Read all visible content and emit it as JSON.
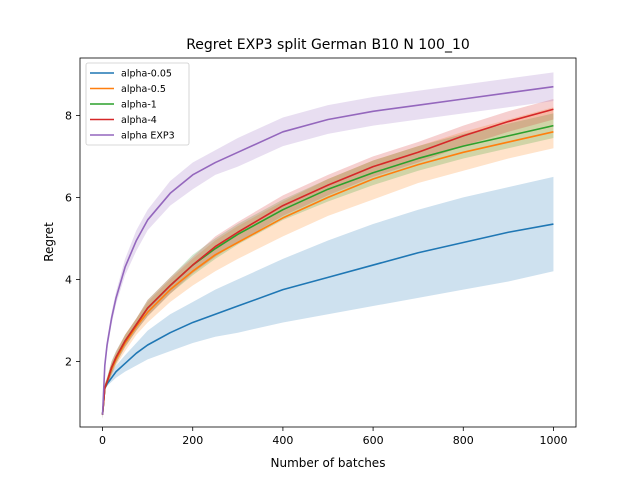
{
  "chart_data": {
    "type": "line",
    "title": "Regret EXP3 split German B10 N 100_10",
    "xlabel": "Number of batches",
    "ylabel": "Regret",
    "xlim": [
      -50,
      1050
    ],
    "ylim": [
      0.4,
      9.4
    ],
    "xticks": [
      0,
      200,
      400,
      600,
      800,
      1000
    ],
    "yticks": [
      2,
      4,
      6,
      8
    ],
    "grid": false,
    "legend_position": "upper-left",
    "x": [
      0,
      5,
      10,
      20,
      30,
      50,
      75,
      100,
      150,
      200,
      250,
      300,
      400,
      500,
      600,
      700,
      800,
      900,
      1000
    ],
    "series": [
      {
        "name": "alpha-0.05",
        "color": "#1f77b4",
        "values": [
          0.7,
          1.35,
          1.45,
          1.6,
          1.75,
          1.95,
          2.2,
          2.4,
          2.7,
          2.95,
          3.15,
          3.35,
          3.75,
          4.05,
          4.35,
          4.65,
          4.9,
          5.15,
          5.35
        ],
        "lower": [
          0.6,
          1.3,
          1.4,
          1.5,
          1.6,
          1.75,
          1.9,
          2.05,
          2.25,
          2.45,
          2.6,
          2.7,
          2.95,
          3.15,
          3.35,
          3.55,
          3.75,
          3.95,
          4.2
        ],
        "upper": [
          0.8,
          1.45,
          1.55,
          1.75,
          1.9,
          2.15,
          2.45,
          2.75,
          3.15,
          3.45,
          3.75,
          4.0,
          4.5,
          4.95,
          5.35,
          5.7,
          6.0,
          6.25,
          6.5
        ]
      },
      {
        "name": "alpha-0.5",
        "color": "#ff7f0e",
        "values": [
          0.7,
          1.35,
          1.5,
          1.8,
          2.05,
          2.45,
          2.85,
          3.2,
          3.75,
          4.2,
          4.6,
          4.9,
          5.5,
          6.0,
          6.45,
          6.8,
          7.1,
          7.35,
          7.6
        ],
        "lower": [
          0.6,
          1.3,
          1.4,
          1.65,
          1.9,
          2.25,
          2.65,
          2.95,
          3.45,
          3.85,
          4.2,
          4.5,
          5.05,
          5.55,
          5.95,
          6.35,
          6.65,
          6.95,
          7.2
        ],
        "upper": [
          0.8,
          1.45,
          1.6,
          1.95,
          2.2,
          2.65,
          3.05,
          3.45,
          4.0,
          4.5,
          4.95,
          5.3,
          5.9,
          6.45,
          6.9,
          7.25,
          7.6,
          7.9,
          8.2
        ]
      },
      {
        "name": "alpha-1",
        "color": "#2ca02c",
        "values": [
          0.7,
          1.35,
          1.5,
          1.85,
          2.1,
          2.5,
          2.9,
          3.3,
          3.85,
          4.35,
          4.75,
          5.1,
          5.7,
          6.2,
          6.6,
          6.95,
          7.25,
          7.5,
          7.75
        ],
        "lower": [
          0.6,
          1.3,
          1.4,
          1.7,
          1.95,
          2.35,
          2.75,
          3.1,
          3.65,
          4.1,
          4.5,
          4.85,
          5.45,
          5.9,
          6.3,
          6.65,
          6.95,
          7.2,
          7.45
        ],
        "upper": [
          0.8,
          1.45,
          1.6,
          2.0,
          2.25,
          2.65,
          3.05,
          3.5,
          4.05,
          4.6,
          5.0,
          5.35,
          5.95,
          6.45,
          6.9,
          7.25,
          7.55,
          7.8,
          8.05
        ]
      },
      {
        "name": "alpha-4",
        "color": "#d62728",
        "values": [
          0.7,
          1.35,
          1.5,
          1.85,
          2.1,
          2.5,
          2.9,
          3.3,
          3.85,
          4.35,
          4.8,
          5.15,
          5.8,
          6.3,
          6.75,
          7.1,
          7.5,
          7.85,
          8.15
        ],
        "lower": [
          0.6,
          1.3,
          1.4,
          1.7,
          1.95,
          2.35,
          2.75,
          3.1,
          3.65,
          4.15,
          4.55,
          4.9,
          5.55,
          6.05,
          6.5,
          6.85,
          7.25,
          7.6,
          7.9
        ],
        "upper": [
          0.8,
          1.45,
          1.6,
          2.0,
          2.25,
          2.65,
          3.05,
          3.5,
          4.05,
          4.55,
          5.05,
          5.4,
          6.05,
          6.55,
          7.0,
          7.35,
          7.75,
          8.1,
          8.4
        ]
      },
      {
        "name": "alpha EXP3",
        "color": "#9467bd",
        "values": [
          0.7,
          1.9,
          2.4,
          3.05,
          3.55,
          4.3,
          4.95,
          5.45,
          6.1,
          6.55,
          6.85,
          7.1,
          7.6,
          7.9,
          8.1,
          8.25,
          8.4,
          8.55,
          8.7
        ],
        "lower": [
          0.6,
          1.8,
          2.25,
          2.9,
          3.4,
          4.1,
          4.7,
          5.2,
          5.8,
          6.2,
          6.55,
          6.75,
          7.25,
          7.55,
          7.75,
          7.9,
          8.05,
          8.2,
          8.35
        ],
        "upper": [
          0.8,
          2.0,
          2.55,
          3.2,
          3.7,
          4.5,
          5.2,
          5.7,
          6.4,
          6.85,
          7.15,
          7.45,
          7.95,
          8.25,
          8.45,
          8.6,
          8.75,
          8.9,
          9.05
        ]
      }
    ]
  }
}
